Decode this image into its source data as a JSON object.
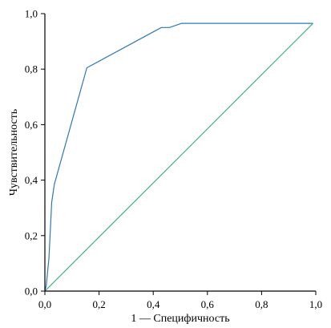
{
  "chart_data": {
    "type": "line",
    "xlabel": "1 — Специфичность",
    "ylabel": "Чувствительность",
    "xlim": [
      0,
      1
    ],
    "ylim": [
      0,
      1
    ],
    "xticks": [
      "0,0",
      "0,2",
      "0,4",
      "0,6",
      "0,8",
      "1,0"
    ],
    "xtick_values": [
      0,
      0.2,
      0.4,
      0.6,
      0.8,
      1.0
    ],
    "yticks": [
      "0,0",
      "0,2",
      "0,4",
      "0,6",
      "0,8",
      "1,0"
    ],
    "ytick_values": [
      0,
      0.2,
      0.4,
      0.6,
      0.8,
      1.0
    ],
    "grid": false,
    "series": [
      {
        "color": "#2e78b7",
        "x": [
          0.0,
          0.005,
          0.015,
          0.025,
          0.035,
          0.155,
          0.43,
          0.46,
          0.505,
          0.99
        ],
        "y": [
          0.0,
          0.02,
          0.12,
          0.32,
          0.385,
          0.805,
          0.95,
          0.95,
          0.965,
          0.965
        ]
      },
      {
        "color": "#3fb27a",
        "x": [
          0.0,
          0.99
        ],
        "y": [
          0.0,
          0.965
        ]
      }
    ]
  }
}
